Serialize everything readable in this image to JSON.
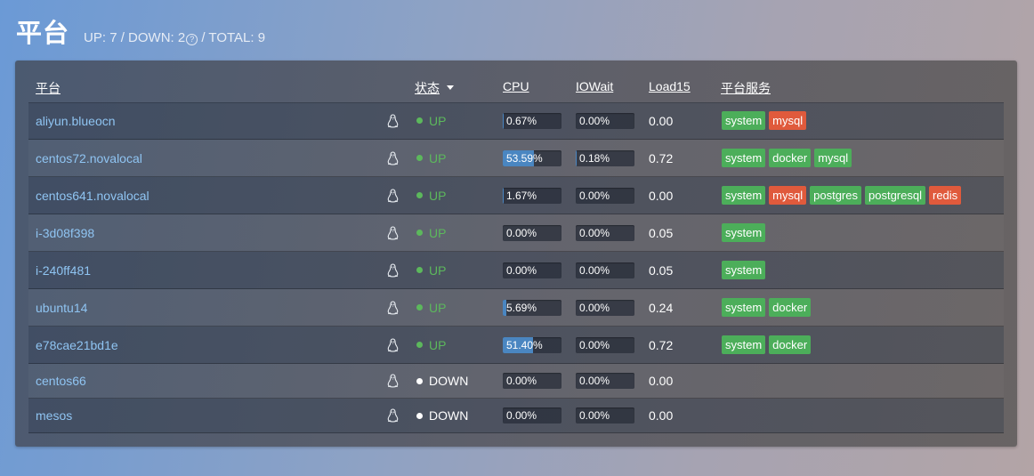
{
  "header": {
    "title": "平台",
    "summary_prefix": "UP: 7 / DOWN: 2",
    "help_glyph": "?",
    "summary_suffix": " / TOTAL: 9"
  },
  "columns": {
    "platform": "平台",
    "status": "状态",
    "cpu": "CPU",
    "iowait": "IOWait",
    "load15": "Load15",
    "services": "平台服务"
  },
  "colors": {
    "up": "#5cb85c",
    "service_ok": "#4cae5a",
    "service_alert": "#e05a3c",
    "bar_fill": "#4a86c1",
    "host_link": "#8fc4f2"
  },
  "os_icon": "linux-penguin-icon",
  "rows": [
    {
      "host": "aliyun.blueocn",
      "status": "UP",
      "cpu": "0.67%",
      "cpu_pct": 0.67,
      "iowait": "0.00%",
      "iowait_pct": 0,
      "load15": "0.00",
      "services": [
        {
          "name": "system",
          "state": "ok"
        },
        {
          "name": "mysql",
          "state": "alert"
        }
      ]
    },
    {
      "host": "centos72.novalocal",
      "status": "UP",
      "cpu": "53.59%",
      "cpu_pct": 53.59,
      "iowait": "0.18%",
      "iowait_pct": 0.18,
      "load15": "0.72",
      "services": [
        {
          "name": "system",
          "state": "ok"
        },
        {
          "name": "docker",
          "state": "ok"
        },
        {
          "name": "mysql",
          "state": "ok"
        }
      ]
    },
    {
      "host": "centos641.novalocal",
      "status": "UP",
      "cpu": "1.67%",
      "cpu_pct": 1.67,
      "iowait": "0.00%",
      "iowait_pct": 0,
      "load15": "0.00",
      "services": [
        {
          "name": "system",
          "state": "ok"
        },
        {
          "name": "mysql",
          "state": "alert"
        },
        {
          "name": "postgres",
          "state": "ok"
        },
        {
          "name": "postgresql",
          "state": "ok"
        },
        {
          "name": "redis",
          "state": "alert"
        }
      ]
    },
    {
      "host": "i-3d08f398",
      "status": "UP",
      "cpu": "0.00%",
      "cpu_pct": 0,
      "iowait": "0.00%",
      "iowait_pct": 0,
      "load15": "0.05",
      "services": [
        {
          "name": "system",
          "state": "ok"
        }
      ]
    },
    {
      "host": "i-240ff481",
      "status": "UP",
      "cpu": "0.00%",
      "cpu_pct": 0,
      "iowait": "0.00%",
      "iowait_pct": 0,
      "load15": "0.05",
      "services": [
        {
          "name": "system",
          "state": "ok"
        }
      ]
    },
    {
      "host": "ubuntu14",
      "status": "UP",
      "cpu": "5.69%",
      "cpu_pct": 5.69,
      "iowait": "0.00%",
      "iowait_pct": 0,
      "load15": "0.24",
      "services": [
        {
          "name": "system",
          "state": "ok"
        },
        {
          "name": "docker",
          "state": "ok"
        }
      ]
    },
    {
      "host": "e78cae21bd1e",
      "status": "UP",
      "cpu": "51.40%",
      "cpu_pct": 51.4,
      "iowait": "0.00%",
      "iowait_pct": 0,
      "load15": "0.72",
      "services": [
        {
          "name": "system",
          "state": "ok"
        },
        {
          "name": "docker",
          "state": "ok"
        }
      ]
    },
    {
      "host": "centos66",
      "status": "DOWN",
      "cpu": "0.00%",
      "cpu_pct": 0,
      "iowait": "0.00%",
      "iowait_pct": 0,
      "load15": "0.00",
      "services": []
    },
    {
      "host": "mesos",
      "status": "DOWN",
      "cpu": "0.00%",
      "cpu_pct": 0,
      "iowait": "0.00%",
      "iowait_pct": 0,
      "load15": "0.00",
      "services": []
    }
  ]
}
